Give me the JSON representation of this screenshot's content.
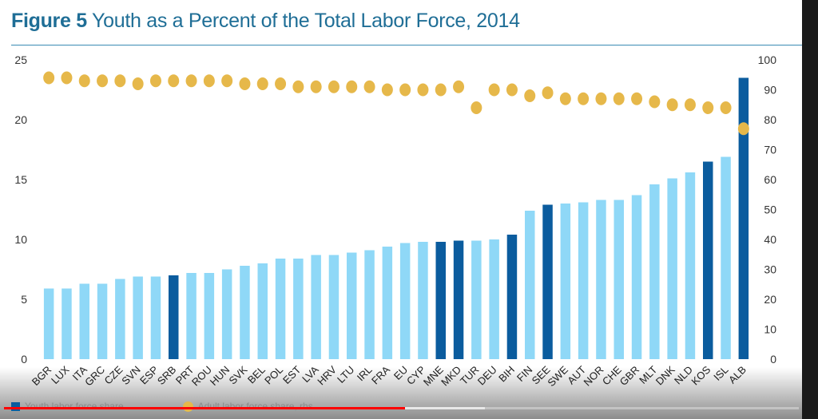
{
  "title": {
    "prefix": "Figure 5",
    "text": "Youth as a Percent of the Total Labor Force, 2014"
  },
  "legend": {
    "youth_label": "Youth labor force share",
    "adult_label": "Adult labor force share, rhs"
  },
  "colors": {
    "highlight_bar": "#0b5c9e",
    "bar": "#8fd8f7",
    "dot": "#e6b84a",
    "title": "#1f6e96"
  },
  "video_progress": {
    "played_fraction": 0.505
  },
  "chart_data": {
    "type": "bar",
    "categories": [
      "BGR",
      "LUX",
      "ITA",
      "GRC",
      "CZE",
      "SVN",
      "ESP",
      "SRB",
      "PRT",
      "ROU",
      "HUN",
      "SVK",
      "BEL",
      "POL",
      "EST",
      "LVA",
      "HRV",
      "LTU",
      "IRL",
      "FRA",
      "EU",
      "CYP",
      "MNE",
      "MKD",
      "TUR",
      "DEU",
      "BIH",
      "FIN",
      "SEE",
      "SWE",
      "AUT",
      "NOR",
      "CHE",
      "GBR",
      "MLT",
      "DNK",
      "NLD",
      "KOS",
      "ISL",
      "ALB"
    ],
    "highlighted": [
      "SRB",
      "MNE",
      "MKD",
      "BIH",
      "SEE",
      "KOS",
      "ALB"
    ],
    "series": [
      {
        "name": "Youth labor force share",
        "axis": "left",
        "type": "bar",
        "values": [
          5.9,
          5.9,
          6.3,
          6.3,
          6.7,
          6.9,
          6.9,
          7.0,
          7.2,
          7.2,
          7.5,
          7.8,
          8.0,
          8.4,
          8.4,
          8.7,
          8.7,
          8.9,
          9.1,
          9.4,
          9.7,
          9.8,
          9.8,
          9.9,
          9.9,
          10.0,
          10.4,
          12.4,
          12.9,
          13.0,
          13.1,
          13.3,
          13.3,
          13.7,
          14.6,
          15.1,
          15.6,
          16.5,
          16.9,
          23.5
        ]
      },
      {
        "name": "Adult labor force share, rhs",
        "axis": "right",
        "type": "scatter",
        "values": [
          94,
          94,
          93,
          93,
          93,
          92,
          93,
          93,
          93,
          93,
          93,
          92,
          92,
          92,
          91,
          91,
          91,
          91,
          91,
          90,
          90,
          90,
          90,
          91,
          84,
          90,
          90,
          88,
          89,
          87,
          87,
          87,
          87,
          87,
          86,
          85,
          85,
          84,
          84,
          77
        ]
      }
    ],
    "y_left": {
      "ylim": [
        0,
        25
      ],
      "ticks": [
        0,
        5,
        10,
        15,
        20,
        25
      ]
    },
    "y_right": {
      "ylim": [
        0,
        100
      ],
      "ticks": [
        0,
        10,
        20,
        30,
        40,
        50,
        60,
        70,
        80,
        90,
        100
      ]
    },
    "legend_position": "bottom-left",
    "grid": false
  }
}
